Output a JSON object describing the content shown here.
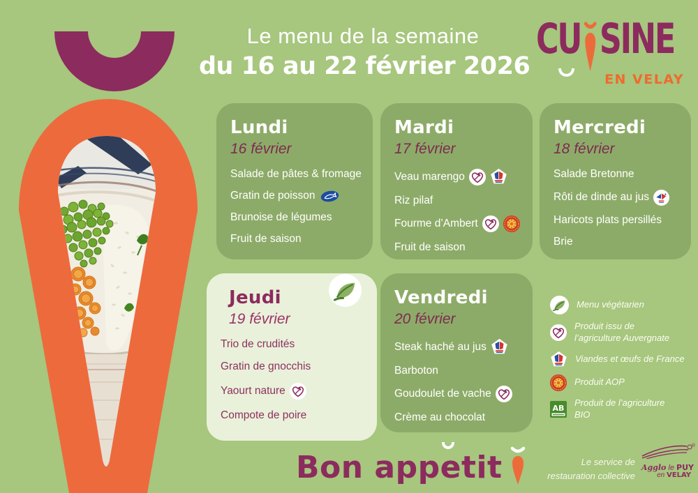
{
  "header": {
    "title": "Le menu de la semaine",
    "subtitle": "du 16 au 22 février 2026"
  },
  "logo": {
    "name_start": "CU",
    "name_end": "SINE",
    "tagline": "EN VELAY"
  },
  "days": [
    {
      "name": "Lundi",
      "date": "16 février",
      "theme": "green",
      "vegetarian": false,
      "items": [
        {
          "label": "Salade de pâtes & fromage",
          "badges": []
        },
        {
          "label": "Gratin de poisson",
          "badges": [
            "fish"
          ]
        },
        {
          "label": "Brunoise de légumes",
          "badges": []
        },
        {
          "label": "Fruit de saison",
          "badges": []
        }
      ]
    },
    {
      "name": "Mardi",
      "date": "17 février",
      "theme": "green",
      "vegetarian": false,
      "items": [
        {
          "label": "Veau marengo",
          "badges": [
            "auvergnate",
            "france"
          ]
        },
        {
          "label": "Riz pilaf",
          "badges": []
        },
        {
          "label": "Fourme d’Ambert",
          "badges": [
            "auvergnate",
            "aop"
          ]
        },
        {
          "label": "Fruit de saison",
          "badges": []
        }
      ]
    },
    {
      "name": "Mercredi",
      "date": "18 février",
      "theme": "green",
      "vegetarian": false,
      "items": [
        {
          "label": "Salade Bretonne",
          "badges": []
        },
        {
          "label": "Rôti de dinde au jus",
          "badges": [
            "volaille"
          ]
        },
        {
          "label": "Haricots plats persillés",
          "badges": []
        },
        {
          "label": "Brie",
          "badges": []
        }
      ]
    },
    {
      "name": "Jeudi",
      "date": "19 février",
      "theme": "cream",
      "vegetarian": true,
      "items": [
        {
          "label": "Trio de crudités",
          "badges": []
        },
        {
          "label": "Gratin de gnocchis",
          "badges": []
        },
        {
          "label": "Yaourt nature",
          "badges": [
            "auvergnate"
          ]
        },
        {
          "label": "Compote de poire",
          "badges": []
        }
      ]
    },
    {
      "name": "Vendredi",
      "date": "20 février",
      "theme": "green",
      "vegetarian": false,
      "items": [
        {
          "label": "Steak haché au jus",
          "badges": [
            "france"
          ]
        },
        {
          "label": "Barboton",
          "badges": []
        },
        {
          "label": "Goudoulet de vache",
          "badges": [
            "auvergnate"
          ]
        },
        {
          "label": "Crème au chocolat",
          "badges": []
        }
      ]
    }
  ],
  "legend": [
    {
      "icon": "veg",
      "label": "Menu végétarien"
    },
    {
      "icon": "auvergnate",
      "label": "Produit issu de\nl’agriculture Auvergnate"
    },
    {
      "icon": "france",
      "label": "Viandes et œufs de France"
    },
    {
      "icon": "aop",
      "label": "Produit AOP"
    },
    {
      "icon": "bio",
      "label": "Produit de l’agriculture\nBIO"
    }
  ],
  "footer": {
    "message_pre": "Bon app",
    "message_breve_letter": "e",
    "message_post": "tit",
    "service_line1": "Le service de",
    "service_line2": "restauration collective"
  },
  "city_logo": {
    "registered": "®",
    "script": "Agglo",
    "le": "le",
    "puy": "PUY",
    "en": "en",
    "velay": "VELAY"
  },
  "icons": {
    "veg": "vegetarian-leaf-icon",
    "auvergnate": "auvergnate-heart-icon",
    "france": "viandes-de-france-icon",
    "aop": "aop-seal-icon",
    "bio": "ab-bio-icon",
    "fish": "fish-label-icon",
    "volaille": "french-poultry-icon"
  },
  "colors": {
    "background": "#a7c67e",
    "card_green": "#8dab68",
    "card_cream": "#e9f1da",
    "magenta": "#8c2b5e",
    "date_maroon": "#7d2b52",
    "orange": "#ed6a3d",
    "tag_orange": "#ee6b2e"
  }
}
